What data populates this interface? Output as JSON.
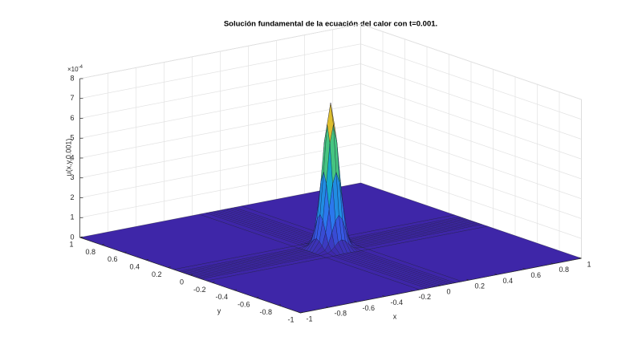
{
  "chart_data": {
    "type": "surface",
    "title": "Solución fundamental de la ecuación del calor con t=0.001.",
    "xlabel": "x",
    "ylabel": "y",
    "zlabel": "u(x,y,0.001)",
    "z_scale": {
      "base": "×10",
      "exponent": "-4"
    },
    "colormap": "parula",
    "grid": true,
    "xlim": [
      -1,
      1
    ],
    "ylim": [
      -1,
      1
    ],
    "zlim": [
      0,
      8
    ],
    "xticks": [
      -1,
      -0.8,
      -0.6,
      -0.4,
      -0.2,
      0,
      0.2,
      0.4,
      0.6,
      0.8,
      1
    ],
    "yticks": [
      -1,
      -0.8,
      -0.6,
      -0.4,
      -0.2,
      0,
      0.2,
      0.4,
      0.6,
      0.8,
      1
    ],
    "zticks": [
      0,
      1,
      2,
      3,
      4,
      5,
      6,
      7,
      8
    ],
    "x": [
      -1,
      -0.15,
      -0.1,
      -0.075,
      -0.05,
      -0.025,
      0,
      0.025,
      0.05,
      0.075,
      0.1,
      0.15,
      1
    ],
    "y": [
      -1,
      -0.15,
      -0.1,
      -0.075,
      -0.05,
      -0.025,
      0,
      0.025,
      0.05,
      0.075,
      0.1,
      0.15,
      1
    ],
    "z": [
      [
        0,
        0,
        0,
        0,
        0,
        0,
        0,
        0,
        0,
        0,
        0,
        0,
        0
      ],
      [
        0,
        0,
        0.002,
        0.006,
        0.014,
        0.022,
        0.026,
        0.022,
        0.014,
        0.006,
        0.002,
        0,
        0
      ],
      [
        0,
        0.002,
        0.049,
        0.147,
        0.32,
        0.512,
        0.599,
        0.512,
        0.32,
        0.147,
        0.049,
        0.002,
        0
      ],
      [
        0,
        0.006,
        0.147,
        0.438,
        0.957,
        1.53,
        1.789,
        1.53,
        0.957,
        0.438,
        0.147,
        0.006,
        0
      ],
      [
        0,
        0.014,
        0.32,
        0.957,
        2.09,
        3.34,
        3.906,
        3.34,
        2.09,
        0.957,
        0.32,
        0.014,
        0
      ],
      [
        0,
        0.022,
        0.512,
        1.53,
        3.34,
        5.337,
        6.242,
        5.337,
        3.34,
        1.53,
        0.512,
        0.022,
        0
      ],
      [
        0,
        0.026,
        0.599,
        1.789,
        3.906,
        6.242,
        7.3,
        6.242,
        3.906,
        1.789,
        0.599,
        0.026,
        0
      ],
      [
        0,
        0.022,
        0.512,
        1.53,
        3.34,
        5.337,
        6.242,
        5.337,
        3.34,
        1.53,
        0.512,
        0.022,
        0
      ],
      [
        0,
        0.014,
        0.32,
        0.957,
        2.09,
        3.34,
        3.906,
        3.34,
        2.09,
        0.957,
        0.32,
        0.014,
        0
      ],
      [
        0,
        0.006,
        0.147,
        0.438,
        0.957,
        1.53,
        1.789,
        1.53,
        0.957,
        0.438,
        0.147,
        0.006,
        0
      ],
      [
        0,
        0.002,
        0.049,
        0.147,
        0.32,
        0.512,
        0.599,
        0.512,
        0.32,
        0.147,
        0.049,
        0.002,
        0
      ],
      [
        0,
        0,
        0.002,
        0.006,
        0.014,
        0.022,
        0.026,
        0.022,
        0.014,
        0.006,
        0.002,
        0,
        0
      ],
      [
        0,
        0,
        0,
        0,
        0,
        0,
        0,
        0,
        0,
        0,
        0,
        0,
        0
      ]
    ]
  }
}
